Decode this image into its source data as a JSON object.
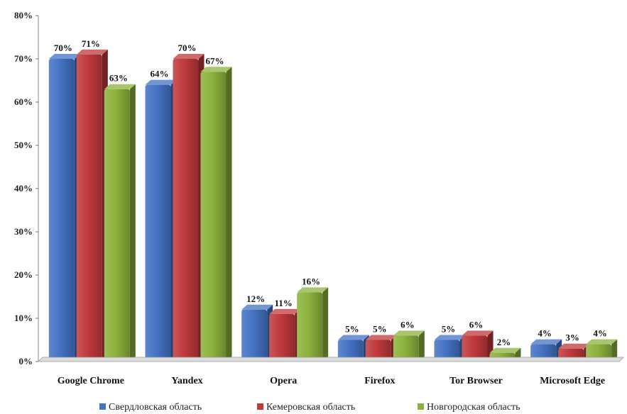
{
  "chart_data": {
    "type": "bar",
    "categories": [
      "Google Chrome",
      "Yandex",
      "Opera",
      "Firefox",
      "Tor Browser",
      "Microsoft Edge"
    ],
    "series": [
      {
        "name": "Свердловская область",
        "values": [
          70,
          64,
          12,
          5,
          5,
          4
        ],
        "color": "#4472C4"
      },
      {
        "name": "Кемеровская область",
        "values": [
          71,
          70,
          11,
          5,
          6,
          3
        ],
        "color": "#C0393B"
      },
      {
        "name": "Новгородская область",
        "values": [
          63,
          67,
          16,
          6,
          2,
          4
        ],
        "color": "#8CB23C"
      }
    ],
    "y_ticks": [
      "0%",
      "10%",
      "20%",
      "30%",
      "40%",
      "50%",
      "60%",
      "70%",
      "80%"
    ],
    "ylim": [
      0,
      80
    ],
    "grid": false,
    "legend_position": "bottom",
    "data_labels": true,
    "value_suffix": "%"
  }
}
